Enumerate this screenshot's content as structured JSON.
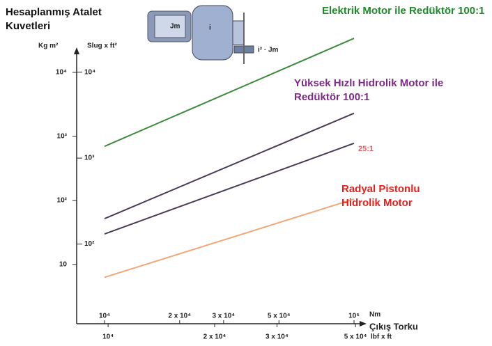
{
  "chart_data": {
    "type": "line",
    "title": "Hesaplanmış Atalet Kuvetleri",
    "y_unit": "Kg m²",
    "y2_unit": "Slug x ft²",
    "x_unit": "Nm",
    "x2_unit": "lbf x ft",
    "x_label": "Çıkış Torku",
    "illustration_labels": [
      "Jm",
      "i",
      "i² · Jm"
    ],
    "log_scale": true,
    "x": [
      10000,
      100000
    ],
    "series": [
      {
        "name": "Elektrik Motor ile Redüktör 100:1",
        "color": "#3d8b3d",
        "label_color": "#1e8a2a",
        "values": [
          700,
          34000
        ]
      },
      {
        "name": "Yüksek Hızlı Hidrolik Motor ile Redüktör 100:1",
        "color": "#4b3c55",
        "label_color": "#7b2a86",
        "values": [
          52,
          2300
        ]
      },
      {
        "name": "Radyal Pistonlu Hidrolik Motor",
        "color": "#f0a878",
        "label_color": "#e8201c",
        "values": [
          6.3,
          105
        ]
      }
    ],
    "extra_series": [
      {
        "name": "25:1",
        "color": "#4b3c55",
        "label_color": "#e06060",
        "values": [
          30,
          780
        ]
      }
    ],
    "xlim": [
      7730,
      108000
    ],
    "xticks": [
      {
        "value": 10000,
        "label": "10⁴"
      },
      {
        "value": 20000,
        "label": "2 x 10⁴"
      },
      {
        "value": 30000,
        "label": "3 x 10⁴"
      },
      {
        "value": 50000,
        "label": "5 x 10⁴"
      },
      {
        "value": 100000,
        "label": "10⁵"
      }
    ],
    "x2lim": [
      8150,
      52300
    ],
    "x2ticks": [
      {
        "value": 10000,
        "label": "10⁴"
      },
      {
        "value": 20000,
        "label": "2 x 10⁴"
      },
      {
        "value": 30000,
        "label": "3 x 10⁴"
      },
      {
        "value": 50000,
        "label": "5 x 10⁴"
      }
    ],
    "ylim": [
      1.28,
      49600
    ],
    "yticks": [
      10,
      {
        "value": 100,
        "label": "10²"
      },
      {
        "value": 1000,
        "label": "10³"
      },
      {
        "value": 10000,
        "label": "10⁴"
      }
    ],
    "y2lim": [
      12.5,
      32800
    ],
    "y2ticks": [
      {
        "value": 100,
        "label": "10²"
      },
      {
        "value": 1000,
        "label": "10³"
      },
      {
        "value": 10000,
        "label": "10⁴"
      }
    ]
  }
}
